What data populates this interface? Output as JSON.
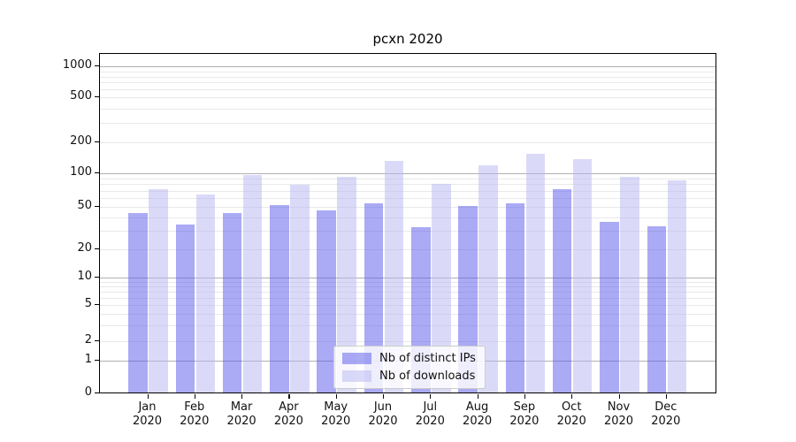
{
  "chart_data": {
    "type": "bar",
    "title": "pcxn 2020",
    "categories": [
      "Jan 2020",
      "Feb 2020",
      "Mar 2020",
      "Apr 2020",
      "May 2020",
      "Jun 2020",
      "Jul 2020",
      "Aug 2020",
      "Sep 2020",
      "Oct 2020",
      "Nov 2020",
      "Dec 2020"
    ],
    "series": [
      {
        "name": "Nb of distinct IPs",
        "color_hex": "#aaaaf5",
        "color_css": "rgba(85,85,235,0.5)",
        "values": [
          42,
          33,
          42,
          50,
          45,
          52,
          31,
          49,
          52,
          70,
          35,
          32
        ]
      },
      {
        "name": "Nb of downloads",
        "color_hex": "#dadaf8",
        "color_css": "rgba(181,181,241,0.5)",
        "values": [
          70,
          62,
          93,
          76,
          89,
          128,
          77,
          115,
          150,
          132,
          90,
          83
        ]
      }
    ],
    "y_ticks": [
      0,
      1,
      2,
      5,
      10,
      20,
      50,
      100,
      200,
      500,
      1000
    ],
    "yscale": "symlog-like",
    "ylim": [
      0,
      1300
    ],
    "xlabel": "",
    "ylabel": "",
    "grid": true,
    "grid_major_color": "#b0b0b0",
    "grid_minor_color": "#e9e9e9",
    "legend_position": "lower center"
  }
}
